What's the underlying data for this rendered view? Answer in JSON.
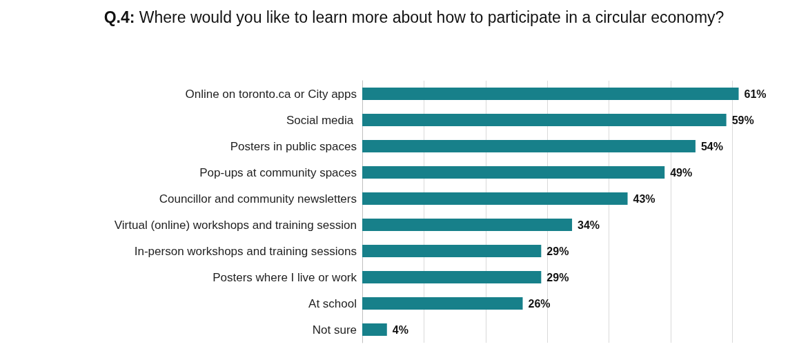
{
  "chart_data": {
    "type": "bar",
    "orientation": "horizontal",
    "title": "Q.4: Where would you like to learn more about how to participate in a circular economy?",
    "categories": [
      "Online on toronto.ca or City apps",
      "Social media ",
      "Posters in public spaces",
      "Pop-ups at community spaces",
      "Councillor and community newsletters",
      "Virtual (online) workshops and training session",
      "In-person workshops and training sessions",
      "Posters where I live or work",
      "At school",
      "Not sure"
    ],
    "values": [
      61,
      59,
      54,
      49,
      43,
      34,
      29,
      29,
      26,
      4
    ],
    "value_labels": [
      "61%",
      "59%",
      "54%",
      "49%",
      "43%",
      "34%",
      "29%",
      "29%",
      "26%",
      "4%"
    ],
    "color": "#17808a",
    "xticks": [
      {
        "value": 0,
        "label": null
      },
      {
        "value": 10,
        "label": null
      },
      {
        "value": 20,
        "label": null
      },
      {
        "value": 30,
        "label": null
      },
      {
        "value": 40,
        "label": null
      },
      {
        "value": 50,
        "label": null
      },
      {
        "value": 60,
        "label": null
      }
    ],
    "grid": "x",
    "tick_labels": "y"
  }
}
